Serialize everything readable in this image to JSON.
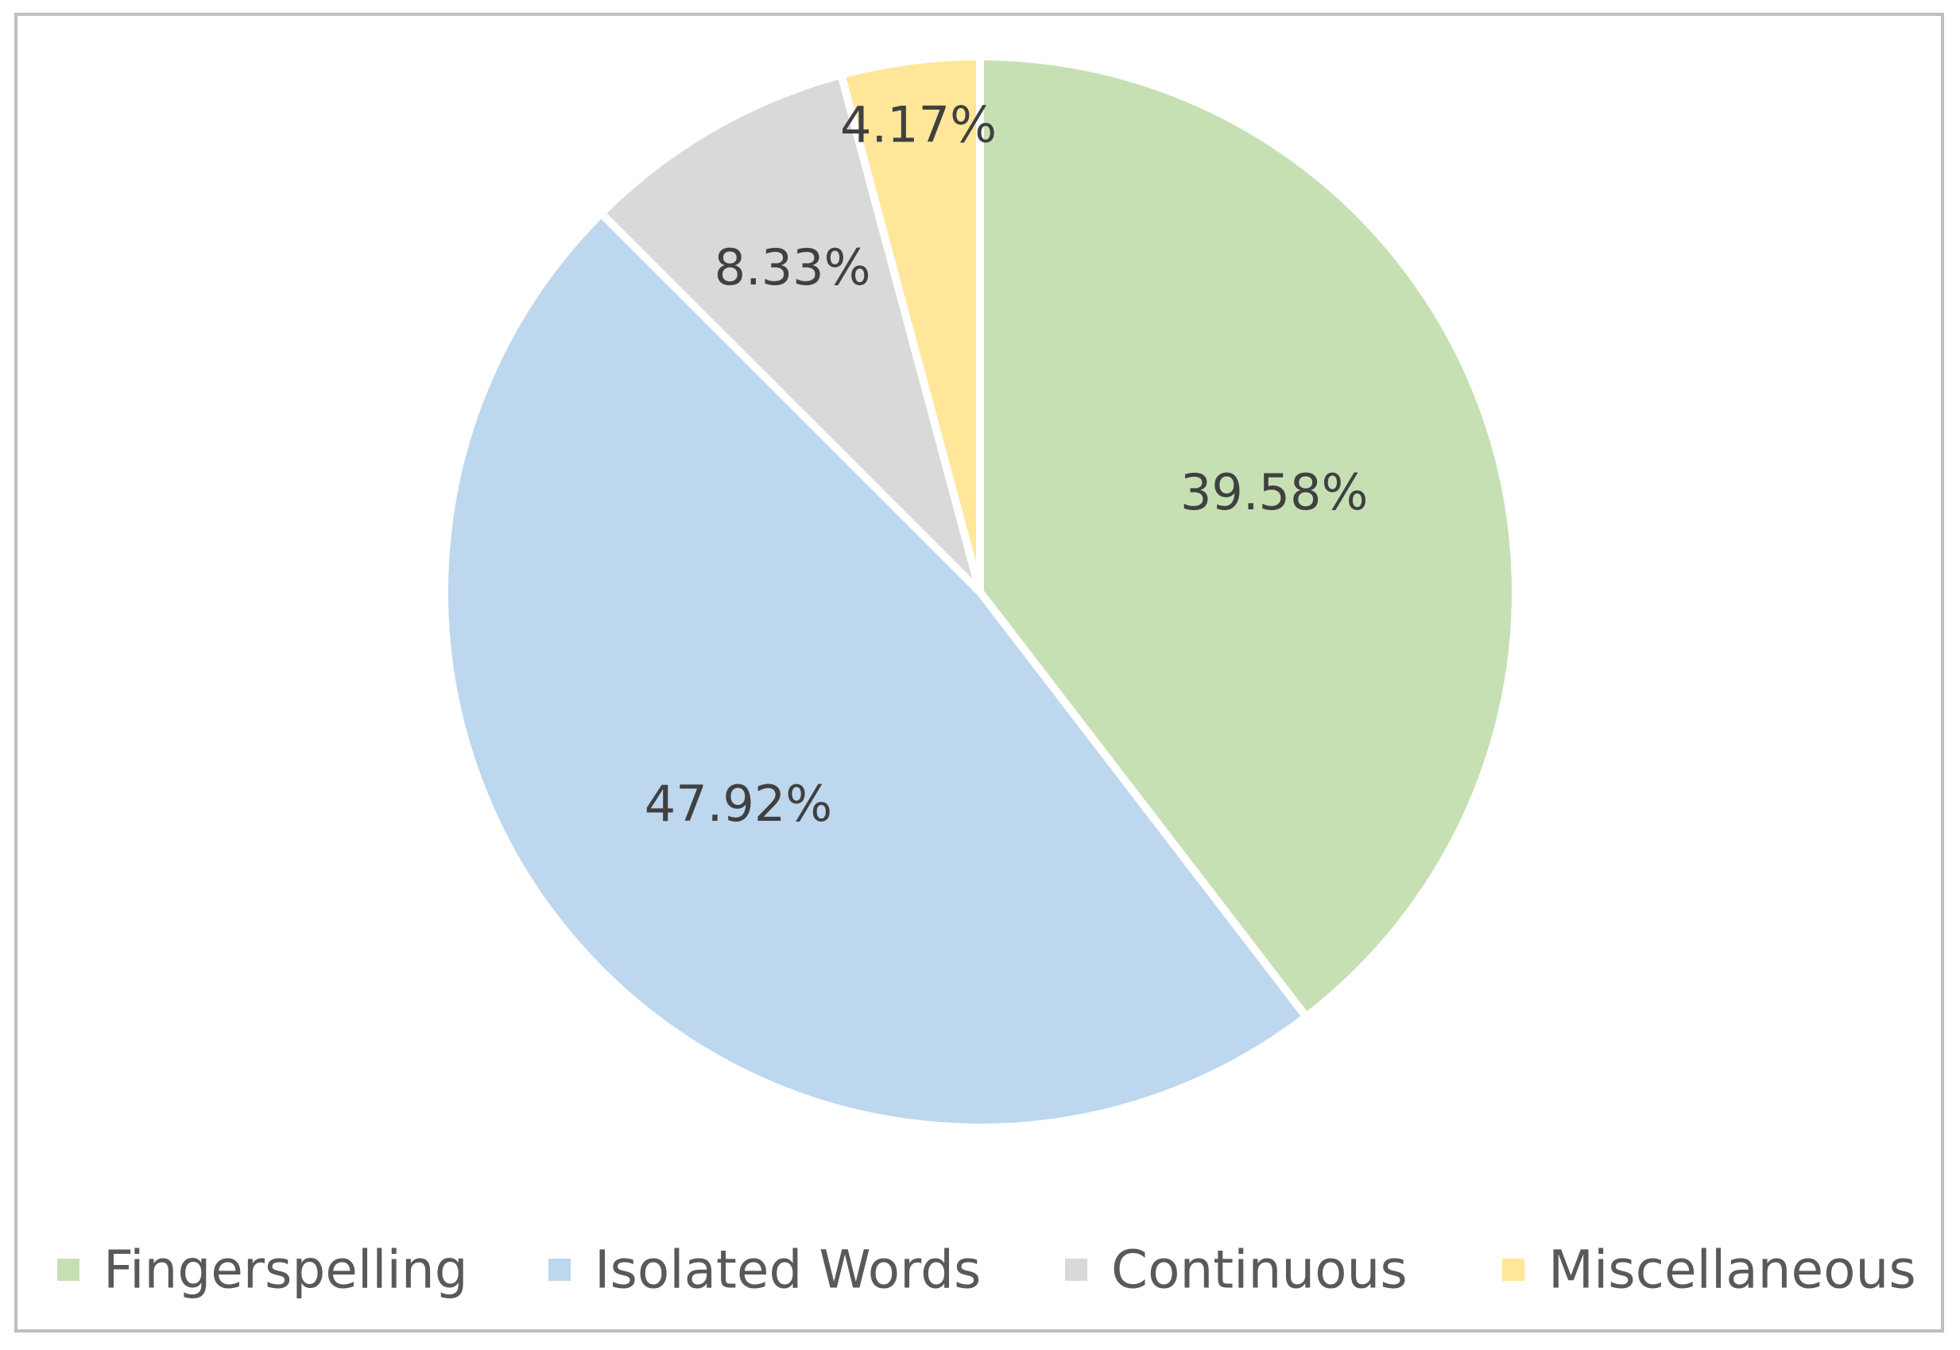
{
  "chart_data": {
    "type": "pie",
    "title": "",
    "slices": [
      {
        "name": "Fingerspelling",
        "value": 39.58,
        "label": "39.58%",
        "color": "#c6e0b4"
      },
      {
        "name": "Isolated Words",
        "value": 47.92,
        "label": "47.92%",
        "color": "#bdd7ee"
      },
      {
        "name": "Continuous",
        "value": 8.33,
        "label": "8.33%",
        "color": "#d9d9d9"
      },
      {
        "name": "Miscellaneous",
        "value": 4.17,
        "label": "4.17%",
        "color": "#ffe699"
      }
    ],
    "start_angle": "12 o'clock",
    "direction": "clockwise",
    "legend_position": "bottom"
  }
}
